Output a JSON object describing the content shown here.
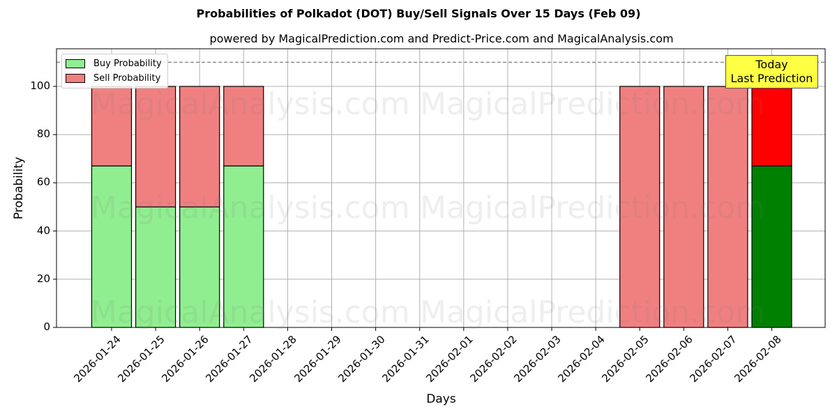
{
  "chart_data": {
    "type": "bar",
    "stacked": true,
    "title": "Probabilities of Polkadot (DOT) Buy/Sell Signals Over 15 Days (Feb 09)",
    "subtitle": "powered by MagicalPrediction.com and Predict-Price.com and MagicalAnalysis.com",
    "xlabel": "Days",
    "ylabel": "Probability",
    "ylim": [
      0,
      115
    ],
    "yticks": [
      0,
      20,
      40,
      60,
      80,
      100
    ],
    "reference_line": {
      "y": 110,
      "style": "dashed",
      "color": "#808080"
    },
    "grid": true,
    "legend_position": "upper left",
    "categories": [
      "2026-01-24",
      "2026-01-25",
      "2026-01-26",
      "2026-01-27",
      "2026-01-28",
      "2026-01-29",
      "2026-01-30",
      "2026-01-31",
      "2026-02-01",
      "2026-02-02",
      "2026-02-03",
      "2026-02-04",
      "2026-02-05",
      "2026-02-06",
      "2026-02-07",
      "2026-02-08"
    ],
    "series": [
      {
        "name": "Buy Probability",
        "color": "#90ee90",
        "values": [
          67,
          50,
          50,
          67,
          null,
          null,
          null,
          null,
          null,
          null,
          null,
          null,
          0,
          0,
          0,
          67
        ]
      },
      {
        "name": "Sell Probability",
        "color": "#f08080",
        "values": [
          33,
          50,
          50,
          33,
          null,
          null,
          null,
          null,
          null,
          null,
          null,
          null,
          100,
          100,
          100,
          33
        ]
      }
    ],
    "highlight": {
      "category": "2026-02-08",
      "buy_color": "#008000",
      "sell_color": "#ff0000",
      "annotation": "Today\nLast Prediction",
      "annotation_bg": "#ffff44"
    }
  },
  "labels": {
    "title": "Probabilities of Polkadot (DOT) Buy/Sell Signals Over 15 Days (Feb 09)",
    "subtitle": "powered by MagicalPrediction.com and Predict-Price.com and MagicalAnalysis.com",
    "xlabel": "Days",
    "ylabel": "Probability",
    "legend_buy": "Buy Probability",
    "legend_sell": "Sell Probability",
    "today_line1": "Today",
    "today_line2": "Last Prediction",
    "watermark_left": "MagicalAnalysis.com",
    "watermark_right": "MagicalPrediction.com"
  }
}
